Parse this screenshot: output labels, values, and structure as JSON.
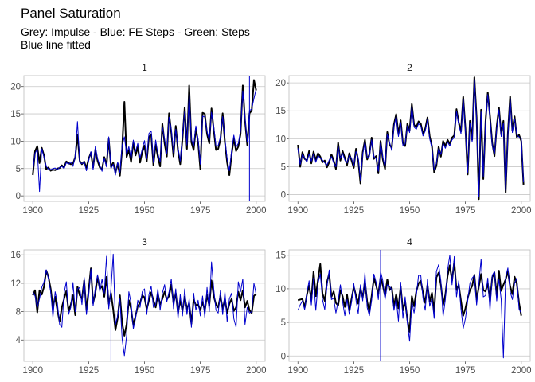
{
  "title": "Panel Saturation",
  "subtitle_lines": [
    "Grey: Impulse - Blue: FE Steps - Green: Steps",
    "Blue line fitted"
  ],
  "colors": {
    "actual": "#000000",
    "fitted": "#0000cd",
    "step": "#0000cd",
    "grid": "#c8c8c8",
    "tick": "#4d4d4d"
  },
  "chart_data": [
    {
      "type": "line",
      "panel_label": "1",
      "xlim": [
        1896,
        2004
      ],
      "ylim": [
        -1,
        22
      ],
      "x_ticks": [
        1900,
        1925,
        1950,
        1975,
        2000
      ],
      "y_ticks": [
        0,
        5,
        10,
        15,
        20
      ],
      "x_start": 1900,
      "step_lines": [
        1997
      ],
      "series": [
        {
          "role": "actual",
          "values": [
            3.8,
            8.2,
            9.1,
            6.0,
            8.8,
            7.4,
            4.9,
            5.2,
            4.6,
            4.8,
            4.7,
            5.0,
            5.1,
            5.6,
            5.2,
            6.3,
            6.0,
            5.8,
            5.9,
            7.1,
            11.2,
            6.4,
            5.8,
            6.3,
            5.1,
            6.8,
            7.9,
            5.2,
            8.5,
            6.4,
            5.2,
            4.9,
            7.1,
            5.6,
            10.4,
            5.3,
            6.1,
            4.2,
            5.9,
            3.7,
            8.6,
            17.2,
            7.1,
            8.4,
            6.2,
            9.8,
            7.4,
            8.9,
            6.1,
            8.0,
            9.2,
            6.3,
            10.8,
            11.2,
            5.6,
            9.4,
            7.1,
            5.4,
            13.2,
            9.6,
            7.2,
            15.1,
            11.6,
            7.2,
            12.8,
            8.3,
            5.8,
            10.4,
            16.2,
            8.6,
            20.2,
            9.8,
            8.4,
            12.3,
            9.8,
            4.9,
            15.2,
            15.0,
            11.3,
            9.6,
            16.0,
            12.1,
            8.4,
            8.6,
            10.3,
            15.1,
            9.8,
            6.1,
            3.8,
            7.6,
            10.5,
            8.2,
            9.0,
            11.3,
            20.2,
            13.8,
            9.3,
            15.1,
            15.6,
            21.2,
            19.3
          ]
        },
        {
          "role": "fitted",
          "values": [
            4.6,
            7.8,
            8.5,
            0.8,
            8.6,
            7.1,
            5.4,
            4.9,
            4.8,
            5.0,
            5.1,
            4.8,
            5.2,
            5.4,
            5.0,
            6.1,
            5.8,
            6.2,
            5.4,
            7.3,
            13.6,
            6.1,
            5.9,
            6.2,
            4.6,
            6.4,
            8.1,
            4.8,
            9.1,
            6.8,
            5.6,
            4.5,
            6.9,
            5.3,
            10.8,
            5.0,
            5.8,
            3.8,
            6.2,
            4.3,
            9.2,
            10.8,
            7.6,
            9.0,
            6.8,
            10.2,
            8.1,
            9.6,
            6.9,
            8.6,
            10.1,
            6.8,
            11.4,
            11.9,
            6.1,
            10.2,
            7.8,
            6.2,
            12.6,
            10.4,
            7.8,
            14.4,
            12.1,
            7.9,
            12.2,
            8.9,
            6.4,
            11.1,
            15.4,
            9.3,
            18.6,
            10.4,
            9.1,
            12.8,
            10.4,
            5.8,
            14.6,
            14.4,
            11.8,
            10.2,
            15.3,
            12.6,
            9.1,
            9.2,
            10.8,
            14.5,
            10.4,
            6.8,
            4.6,
            8.3,
            11.1,
            8.9,
            9.6,
            11.9,
            19.2,
            14.2,
            9.8,
            15.6,
            15.9,
            17.8,
            19.6
          ]
        }
      ]
    },
    {
      "type": "line",
      "panel_label": "2",
      "xlim": [
        1896,
        2004
      ],
      "ylim": [
        -1.2,
        21.3
      ],
      "x_ticks": [
        1900,
        1925,
        1950,
        1975,
        2000
      ],
      "y_ticks": [
        0,
        5,
        10,
        15,
        20
      ],
      "x_start": 1900,
      "step_lines": [],
      "series": [
        {
          "role": "actual",
          "values": [
            8.9,
            5.0,
            7.6,
            6.4,
            6.1,
            7.8,
            5.6,
            7.7,
            6.2,
            7.4,
            6.8,
            5.8,
            6.1,
            4.9,
            5.8,
            7.2,
            6.1,
            4.6,
            9.3,
            6.1,
            7.8,
            6.6,
            5.3,
            7.4,
            6.1,
            4.8,
            8.2,
            6.1,
            2.0,
            7.6,
            9.8,
            6.3,
            7.2,
            10.2,
            6.4,
            6.9,
            3.8,
            9.6,
            6.3,
            4.6,
            11.2,
            9.0,
            8.3,
            12.6,
            14.4,
            10.8,
            13.3,
            9.2,
            8.7,
            12.7,
            11.5,
            16.2,
            12.5,
            12.1,
            13.1,
            12.7,
            10.9,
            11.8,
            13.8,
            10.4,
            8.7,
            4.0,
            5.2,
            8.6,
            6.8,
            9.6,
            8.7,
            9.8,
            9.1,
            10.2,
            10.6,
            15.3,
            12.9,
            11.3,
            17.5,
            11.8,
            3.6,
            13.2,
            9.8,
            21.0,
            13.8,
            -0.8,
            15.2,
            2.8,
            13.1,
            18.3,
            14.0,
            9.2,
            6.9,
            12.2,
            15.6,
            10.8,
            13.2,
            0.4,
            11.0,
            17.6,
            11.5,
            14.0,
            10.3,
            10.7,
            9.6,
            1.8
          ]
        },
        {
          "role": "fitted",
          "values": [
            8.3,
            5.4,
            7.2,
            6.6,
            5.8,
            7.3,
            6.0,
            7.3,
            5.8,
            7.0,
            6.5,
            6.2,
            5.7,
            5.3,
            6.2,
            6.8,
            5.7,
            5.0,
            8.7,
            6.5,
            7.4,
            6.2,
            5.7,
            7.0,
            6.5,
            5.2,
            7.7,
            6.5,
            2.6,
            7.2,
            9.4,
            6.7,
            6.8,
            9.8,
            6.8,
            6.5,
            4.2,
            9.2,
            6.7,
            5.0,
            10.8,
            9.4,
            7.9,
            12.2,
            14.0,
            10.4,
            12.9,
            8.8,
            9.1,
            12.3,
            11.1,
            15.8,
            12.1,
            11.7,
            12.7,
            12.3,
            10.5,
            11.4,
            13.4,
            10.0,
            8.3,
            4.4,
            5.6,
            8.2,
            7.2,
            9.2,
            8.3,
            9.4,
            8.7,
            9.8,
            10.2,
            14.9,
            12.5,
            10.9,
            17.1,
            11.4,
            4.0,
            12.8,
            9.4,
            20.6,
            13.4,
            -0.4,
            14.8,
            3.2,
            12.7,
            17.9,
            13.6,
            8.8,
            7.3,
            11.8,
            15.2,
            10.4,
            12.8,
            0.8,
            10.6,
            17.2,
            11.1,
            13.6,
            10.7,
            10.3,
            10.0,
            2.2
          ]
        }
      ]
    },
    {
      "type": "line",
      "panel_label": "3",
      "xlim": [
        1896,
        2004
      ],
      "ylim": [
        1,
        16.7
      ],
      "x_ticks": [
        1900,
        1925,
        1950,
        1975,
        2000
      ],
      "y_ticks": [
        4,
        8,
        12,
        16
      ],
      "x_start": 1900,
      "step_lines": [
        1935
      ],
      "series": [
        {
          "role": "actual",
          "values": [
            10.3,
            11.0,
            7.9,
            11.0,
            10.4,
            11.5,
            13.8,
            12.9,
            11.2,
            8.6,
            10.1,
            8.2,
            6.6,
            8.6,
            9.8,
            10.9,
            8.1,
            9.0,
            10.3,
            7.5,
            11.5,
            10.3,
            9.8,
            12.4,
            8.2,
            11.0,
            14.1,
            9.2,
            10.6,
            12.9,
            11.2,
            11.6,
            10.1,
            12.9,
            9.1,
            10.6,
            8.3,
            5.4,
            7.1,
            10.3,
            6.4,
            4.6,
            6.2,
            9.6,
            8.4,
            6.1,
            7.4,
            8.8,
            9.2,
            10.3,
            10.0,
            8.3,
            9.6,
            10.7,
            9.6,
            8.6,
            10.5,
            9.0,
            9.8,
            10.8,
            9.7,
            10.2,
            11.8,
            9.2,
            10.6,
            7.8,
            9.6,
            8.1,
            10.1,
            8.4,
            9.2,
            6.3,
            9.7,
            8.9,
            9.0,
            8.2,
            9.4,
            8.1,
            10.4,
            8.8,
            12.4,
            10.2,
            9.0,
            8.6,
            10.2,
            8.4,
            9.8,
            7.8,
            9.1,
            9.8,
            8.1,
            8.6,
            10.8,
            9.6,
            11.0,
            8.6,
            9.5,
            8.2,
            7.8,
            10.2,
            10.5
          ]
        },
        {
          "role": "fitted",
          "values": [
            10.8,
            10.2,
            8.6,
            9.8,
            11.4,
            12.2,
            13.9,
            12.6,
            10.8,
            7.2,
            10.8,
            9.2,
            6.2,
            5.8,
            10.6,
            12.2,
            7.6,
            8.6,
            12.1,
            8.0,
            11.2,
            11.4,
            9.0,
            12.8,
            7.6,
            10.2,
            14.0,
            8.8,
            11.4,
            13.2,
            10.8,
            12.6,
            10.6,
            15.8,
            8.4,
            11.2,
            16.1,
            6.2,
            7.4,
            9.8,
            4.1,
            1.8,
            4.6,
            10.8,
            9.2,
            5.6,
            7.0,
            9.6,
            8.6,
            10.8,
            11.2,
            7.6,
            10.4,
            11.6,
            8.6,
            9.0,
            11.2,
            8.2,
            10.6,
            11.8,
            9.4,
            10.8,
            12.6,
            8.4,
            11.2,
            7.0,
            10.4,
            7.4,
            11.2,
            7.6,
            9.8,
            5.8,
            10.6,
            8.2,
            9.6,
            7.4,
            10.2,
            7.2,
            11.4,
            8.0,
            15.0,
            11.2,
            8.2,
            7.8,
            11.0,
            7.6,
            10.8,
            6.6,
            9.8,
            10.6,
            7.0,
            5.8,
            12.2,
            10.8,
            12.6,
            6.2,
            8.6,
            7.8,
            8.0,
            12.0,
            10.4
          ]
        }
      ]
    },
    {
      "type": "line",
      "panel_label": "4",
      "xlim": [
        1896,
        2004
      ],
      "ylim": [
        -0.8,
        15.8
      ],
      "x_ticks": [
        1900,
        1925,
        1950,
        1975,
        2000
      ],
      "y_ticks": [
        0,
        5,
        10,
        15
      ],
      "x_start": 1900,
      "step_lines": [
        1937
      ],
      "series": [
        {
          "role": "actual",
          "values": [
            8.3,
            8.4,
            8.5,
            7.2,
            9.1,
            10.5,
            8.3,
            12.6,
            8.9,
            11.4,
            13.7,
            9.3,
            8.2,
            11.0,
            12.3,
            8.8,
            9.6,
            7.9,
            7.5,
            9.8,
            8.9,
            7.3,
            9.1,
            6.8,
            8.5,
            10.3,
            9.0,
            7.8,
            10.1,
            8.7,
            11.1,
            8.1,
            6.6,
            8.9,
            11.6,
            10.5,
            9.2,
            11.7,
            10.5,
            8.9,
            11.4,
            9.8,
            10.2,
            7.4,
            9.2,
            7.1,
            10.4,
            6.8,
            8.2,
            5.4,
            3.6,
            8.9,
            7.4,
            9.6,
            10.8,
            11.2,
            9.4,
            7.9,
            10.6,
            8.1,
            9.4,
            6.6,
            11.7,
            12.4,
            10.6,
            7.6,
            9.1,
            11.9,
            13.5,
            11.2,
            14.1,
            9.8,
            10.6,
            8.2,
            6.0,
            7.1,
            8.6,
            9.8,
            10.4,
            12.1,
            8.4,
            10.3,
            12.2,
            9.8,
            9.6,
            10.8,
            8.2,
            11.7,
            12.4,
            9.0,
            12.7,
            9.7,
            10.6,
            11.4,
            12.6,
            10.4,
            9.2,
            11.8,
            10.8,
            7.9,
            6.0
          ]
        },
        {
          "role": "fitted",
          "values": [
            6.8,
            7.6,
            8.2,
            6.9,
            9.4,
            11.2,
            7.6,
            11.6,
            6.8,
            10.8,
            12.2,
            8.4,
            6.9,
            10.4,
            12.8,
            8.4,
            8.6,
            6.4,
            8.2,
            10.6,
            8.1,
            6.0,
            8.4,
            6.2,
            8.0,
            10.8,
            8.3,
            6.3,
            10.6,
            8.2,
            12.4,
            7.2,
            6.0,
            8.3,
            12.2,
            11.0,
            8.4,
            12.6,
            11.2,
            8.4,
            10.6,
            10.4,
            9.8,
            6.8,
            8.6,
            5.2,
            11.0,
            5.6,
            8.8,
            4.9,
            2.2,
            8.1,
            6.4,
            9.0,
            12.0,
            12.0,
            8.6,
            6.8,
            11.4,
            7.4,
            8.6,
            5.6,
            12.6,
            13.6,
            11.2,
            5.9,
            8.4,
            12.8,
            15.0,
            10.6,
            14.8,
            8.8,
            11.2,
            7.0,
            4.1,
            5.6,
            8.2,
            10.8,
            11.6,
            12.0,
            7.6,
            10.8,
            14.4,
            8.8,
            9.0,
            11.6,
            6.8,
            12.0,
            12.6,
            8.2,
            11.4,
            8.4,
            -0.3,
            11.8,
            13.1,
            9.6,
            8.4,
            10.8,
            11.6,
            7.0,
            6.4
          ]
        }
      ]
    }
  ]
}
